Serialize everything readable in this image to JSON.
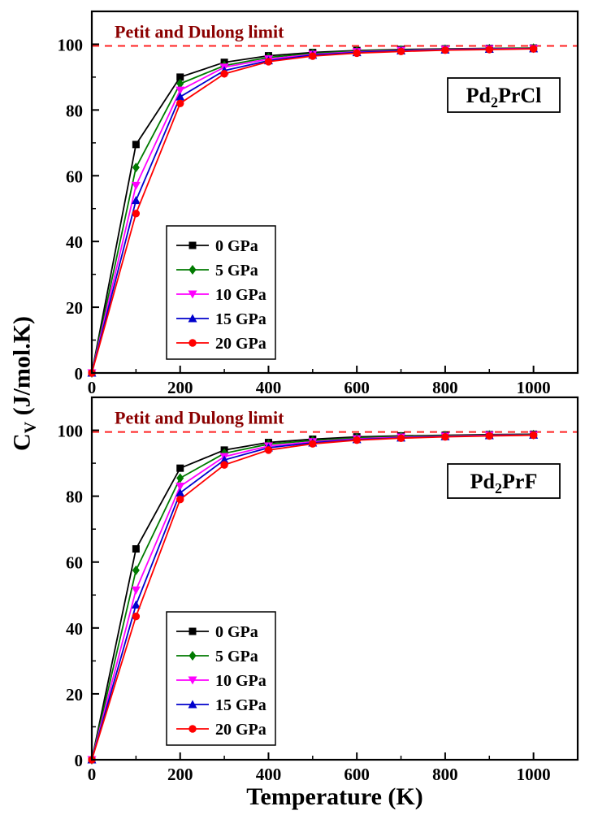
{
  "axis_labels": {
    "x": "Temperature (K)",
    "y_main": "C",
    "y_sub": "V",
    "y_rest": " (J/mol.K)"
  },
  "style": {
    "background": "#ffffff",
    "frame_color": "#000000",
    "limit_line_color": "#ff2222",
    "annotation_color": "#8b0000"
  },
  "chart_data": [
    {
      "id": "pd2prcl",
      "type": "line",
      "title": "Pd₂PrCl",
      "title_main": "Pd",
      "title_sub": "2",
      "title_rest": "PrCl",
      "annotation": "Petit and Dulong limit",
      "limit_value": 99.5,
      "xlabel": "Temperature (K)",
      "ylabel": "Cv (J/mol.K)",
      "xlim": [
        0,
        1100
      ],
      "ylim": [
        0,
        110
      ],
      "xticks": [
        0,
        200,
        400,
        600,
        800,
        1000
      ],
      "yticks": [
        0,
        20,
        40,
        60,
        80,
        100
      ],
      "legend_position": "inside lower-left",
      "grid": false,
      "x": [
        0,
        100,
        200,
        300,
        400,
        500,
        600,
        700,
        800,
        900,
        1000
      ],
      "series": [
        {
          "name": "0 GPa",
          "marker": "square",
          "color": "#000000",
          "values": [
            0,
            69.5,
            90.0,
            94.5,
            96.5,
            97.5,
            98.1,
            98.4,
            98.6,
            98.75,
            98.85
          ]
        },
        {
          "name": "5 GPa",
          "marker": "diamond",
          "color": "#007a00",
          "values": [
            0,
            62.5,
            88.0,
            93.5,
            96.0,
            97.2,
            97.9,
            98.25,
            98.5,
            98.65,
            98.8
          ]
        },
        {
          "name": "10 GPa",
          "marker": "triangle-down",
          "color": "#ff00ff",
          "values": [
            0,
            57.0,
            86.0,
            93.0,
            95.5,
            96.9,
            97.7,
            98.1,
            98.4,
            98.6,
            98.7
          ]
        },
        {
          "name": "15 GPa",
          "marker": "triangle-up",
          "color": "#0000cc",
          "values": [
            0,
            52.5,
            84.0,
            92.0,
            95.0,
            96.7,
            97.5,
            98.0,
            98.3,
            98.5,
            98.65
          ]
        },
        {
          "name": "20 GPa",
          "marker": "circle",
          "color": "#ff0000",
          "values": [
            0,
            48.5,
            82.0,
            91.0,
            94.7,
            96.4,
            97.3,
            97.8,
            98.2,
            98.4,
            98.6
          ]
        }
      ]
    },
    {
      "id": "pd2prf",
      "type": "line",
      "title": "Pd₂PrF",
      "title_main": "Pd",
      "title_sub": "2",
      "title_rest": "PrF",
      "annotation": "Petit and Dulong limit",
      "limit_value": 99.5,
      "xlabel": "Temperature (K)",
      "ylabel": "Cv (J/mol.K)",
      "xlim": [
        0,
        1100
      ],
      "ylim": [
        0,
        110
      ],
      "xticks": [
        0,
        200,
        400,
        600,
        800,
        1000
      ],
      "yticks": [
        0,
        20,
        40,
        60,
        80,
        100
      ],
      "legend_position": "inside lower-left",
      "grid": false,
      "x": [
        0,
        100,
        200,
        300,
        400,
        500,
        600,
        700,
        800,
        900,
        1000
      ],
      "series": [
        {
          "name": "0 GPa",
          "marker": "square",
          "color": "#000000",
          "values": [
            0,
            64.0,
            88.5,
            94.0,
            96.3,
            97.3,
            98.0,
            98.3,
            98.5,
            98.7,
            98.8
          ]
        },
        {
          "name": "5 GPa",
          "marker": "diamond",
          "color": "#007a00",
          "values": [
            0,
            57.5,
            85.5,
            93.0,
            95.8,
            96.9,
            97.7,
            98.1,
            98.4,
            98.6,
            98.7
          ]
        },
        {
          "name": "10 GPa",
          "marker": "triangle-down",
          "color": "#ff00ff",
          "values": [
            0,
            51.5,
            83.0,
            92.0,
            95.2,
            96.5,
            97.4,
            97.9,
            98.2,
            98.5,
            98.6
          ]
        },
        {
          "name": "15 GPa",
          "marker": "triangle-up",
          "color": "#0000cc",
          "values": [
            0,
            47.0,
            81.0,
            91.0,
            94.7,
            96.2,
            97.2,
            97.7,
            98.1,
            98.4,
            98.55
          ]
        },
        {
          "name": "20 GPa",
          "marker": "circle",
          "color": "#ff0000",
          "values": [
            0,
            43.5,
            79.0,
            89.5,
            94.0,
            95.9,
            97.0,
            97.6,
            98.0,
            98.3,
            98.5
          ]
        }
      ]
    }
  ]
}
